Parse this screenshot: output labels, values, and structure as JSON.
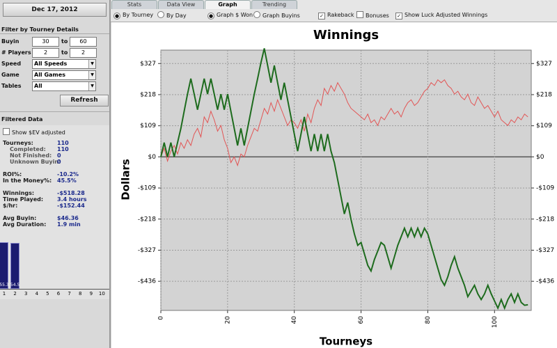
{
  "sidebar": {
    "date_button": "Dec 17, 2012",
    "filters": {
      "title": "Filter by Tourney Details",
      "range_rows": [
        {
          "label": "Buyin",
          "min": "30",
          "sep": "to",
          "max": "60"
        },
        {
          "label": "# Players",
          "min": "2",
          "sep": "to",
          "max": "2"
        }
      ],
      "select_rows": [
        {
          "label": "Speed",
          "value": "All Speeds"
        },
        {
          "label": "Game",
          "value": "All Games"
        },
        {
          "label": "Tables",
          "value": "All"
        }
      ],
      "button": "Refresh"
    },
    "filtered": {
      "title": "Filtered Data",
      "checkbox": "Show $EV adjusted",
      "stat_groups": [
        [
          {
            "label": "Tourneys:",
            "value": "110",
            "details": [
              {
                "label": "Completed:",
                "value": "110"
              },
              {
                "label": "Not Finished:",
                "value": "0"
              },
              {
                "label": "Unknown Buyin:",
                "value": "0"
              }
            ]
          }
        ],
        [
          {
            "label": "ROI%:",
            "value": "-10.2%"
          },
          {
            "label": "In the Money%:",
            "value": "45.5%"
          }
        ],
        [
          {
            "label": "Winnings:",
            "value": "-$518.28"
          },
          {
            "label": "Time Played:",
            "value": "3.4 hours"
          },
          {
            "label": "$/hr:",
            "value": "-$152.44"
          }
        ],
        [
          {
            "label": "Avg Buyin:",
            "value": "$46.36"
          },
          {
            "label": "Avg Duration:",
            "value": "1.9 min"
          }
        ]
      ]
    },
    "mini_chart": {
      "type": "bar",
      "x": [
        1,
        2
      ],
      "values": [
        55.3,
        54.5
      ],
      "ylim": [
        0,
        70
      ],
      "xticks": [
        1,
        2,
        3,
        4,
        5,
        6,
        7,
        8,
        9,
        10
      ],
      "color": "#1c1c70"
    }
  },
  "tabs": {
    "items": [
      "Stats",
      "Data View",
      "Graph",
      "Trending"
    ],
    "active": 2
  },
  "options": [
    {
      "kind": "radio",
      "label": "By Tourney",
      "checked": true
    },
    {
      "kind": "radio",
      "label": "By Day",
      "checked": false
    },
    {
      "kind": "radio",
      "label": "Graph $ Won",
      "checked": true
    },
    {
      "kind": "radio",
      "label": "Graph Buyins",
      "checked": false
    },
    {
      "kind": "checkbox",
      "label": "Rakeback",
      "checked": true
    },
    {
      "kind": "checkbox",
      "label": "Bonuses",
      "checked": false
    },
    {
      "kind": "checkbox",
      "label": "Show Luck Adjusted Winnings",
      "checked": true
    }
  ],
  "chart_data": {
    "type": "line",
    "title": "Winnings",
    "xlabel": "Tourneys",
    "ylabel": "Dollars",
    "x": [
      0,
      1,
      2,
      3,
      4,
      5,
      6,
      7,
      8,
      9,
      10,
      11,
      12,
      13,
      14,
      15,
      16,
      17,
      18,
      19,
      20,
      21,
      22,
      23,
      24,
      25,
      26,
      27,
      28,
      29,
      30,
      31,
      32,
      33,
      34,
      35,
      36,
      37,
      38,
      39,
      40,
      41,
      42,
      43,
      44,
      45,
      46,
      47,
      48,
      49,
      50,
      51,
      52,
      53,
      54,
      55,
      56,
      57,
      58,
      59,
      60,
      61,
      62,
      63,
      64,
      65,
      66,
      67,
      68,
      69,
      70,
      71,
      72,
      73,
      74,
      75,
      76,
      77,
      78,
      79,
      80,
      81,
      82,
      83,
      84,
      85,
      86,
      87,
      88,
      89,
      90,
      91,
      92,
      93,
      94,
      95,
      96,
      97,
      98,
      99,
      100,
      101,
      102,
      103,
      104,
      105,
      106,
      107,
      108,
      109,
      110
    ],
    "series": [
      {
        "color": "#1d6b1d",
        "values": [
          0,
          50,
          0,
          50,
          0,
          50,
          100,
          160,
          220,
          274,
          220,
          165,
          220,
          274,
          220,
          274,
          220,
          165,
          220,
          165,
          220,
          160,
          100,
          40,
          100,
          40,
          100,
          160,
          220,
          274,
          330,
          380,
          320,
          260,
          320,
          260,
          200,
          260,
          200,
          140,
          80,
          20,
          80,
          140,
          80,
          20,
          80,
          20,
          80,
          20,
          80,
          20,
          -20,
          -80,
          -140,
          -200,
          -160,
          -220,
          -270,
          -310,
          -300,
          -340,
          -380,
          -400,
          -360,
          -330,
          -300,
          -310,
          -350,
          -390,
          -350,
          -310,
          -280,
          -250,
          -280,
          -250,
          -280,
          -250,
          -280,
          -250,
          -270,
          -310,
          -350,
          -390,
          -430,
          -450,
          -420,
          -380,
          -350,
          -390,
          -420,
          -450,
          -490,
          -470,
          -450,
          -480,
          -500,
          -480,
          -450,
          -480,
          -505,
          -530,
          -500,
          -530,
          -500,
          -480,
          -510,
          -480,
          -510,
          -520,
          -518.28
        ]
      },
      {
        "color": "#e25555",
        "values": [
          0,
          30,
          -15,
          20,
          40,
          10,
          50,
          30,
          60,
          40,
          80,
          100,
          70,
          140,
          120,
          160,
          130,
          90,
          110,
          60,
          30,
          -20,
          0,
          -30,
          10,
          0,
          40,
          70,
          100,
          90,
          130,
          170,
          150,
          190,
          160,
          200,
          170,
          140,
          110,
          130,
          120,
          100,
          130,
          90,
          150,
          120,
          170,
          200,
          180,
          240,
          220,
          250,
          230,
          260,
          240,
          220,
          190,
          170,
          160,
          150,
          140,
          130,
          150,
          120,
          130,
          110,
          140,
          130,
          150,
          170,
          150,
          160,
          140,
          170,
          190,
          200,
          180,
          190,
          210,
          230,
          240,
          260,
          250,
          270,
          260,
          270,
          250,
          240,
          220,
          230,
          210,
          200,
          220,
          190,
          180,
          210,
          190,
          170,
          180,
          160,
          140,
          160,
          130,
          120,
          110,
          130,
          120,
          140,
          130,
          150,
          140
        ]
      }
    ],
    "xlim": [
      0,
      111
    ],
    "ylim": [
      -538,
      374
    ],
    "xticks": [
      0,
      20,
      40,
      60,
      80,
      100
    ],
    "yticks": [
      {
        "value": 327,
        "label": "$327"
      },
      {
        "value": 218,
        "label": "$218"
      },
      {
        "value": 109,
        "label": "$109"
      },
      {
        "value": 0,
        "label": "$0"
      },
      {
        "value": -109,
        "label": "-$109"
      },
      {
        "value": -218,
        "label": "-$218"
      },
      {
        "value": -327,
        "label": "-$327"
      },
      {
        "value": -436,
        "label": "-$436"
      }
    ],
    "grid": true
  }
}
